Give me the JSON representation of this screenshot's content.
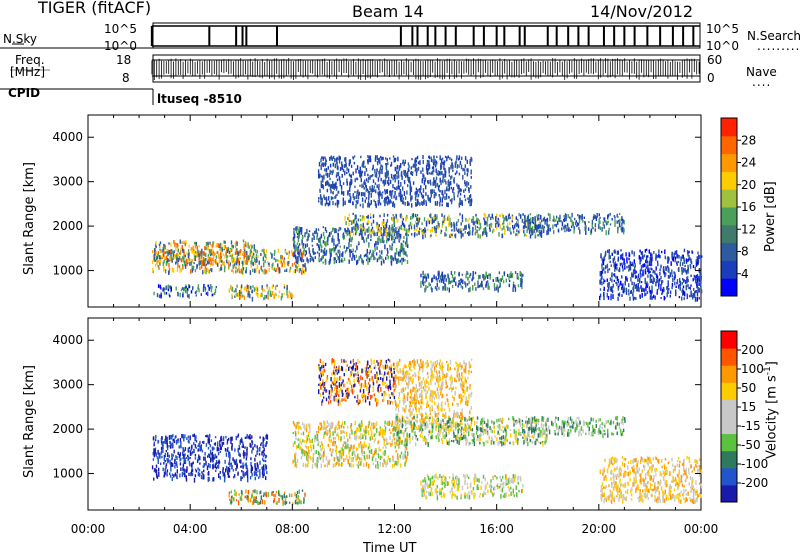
{
  "header": {
    "radar": "TIGER (fitACF)",
    "beam": "Beam 14",
    "date": "14/Nov/2012"
  },
  "status_panels": {
    "nsky_label": "N.Sky",
    "nsky_ticks": [
      "10^5",
      "10^0"
    ],
    "nsearch_label": "N.Search",
    "nsearch_ticks": [
      "10^5",
      "10^0"
    ],
    "freq_label_line1": "Freq.",
    "freq_label_line2": "[MHz]",
    "freq_ticks": [
      "18",
      "8"
    ],
    "nave_label": "Nave",
    "nave_ticks": [
      "60",
      "0"
    ],
    "cpid_label": "CPID",
    "cpid_text": "ltuseq -8510",
    "data_start_hour": 2.5,
    "nsky_spikes_hours": [
      2.5,
      4.75,
      5.8,
      6.05,
      6.2,
      7.4,
      12.25,
      12.7,
      12.9,
      13.3,
      13.6,
      14.0,
      14.4,
      15.1,
      15.5,
      16.0,
      16.3,
      16.9,
      17.1,
      18.0,
      18.35,
      18.8,
      19.2,
      19.6,
      20.2,
      20.6,
      21.0,
      21.4,
      21.9,
      22.4,
      22.9,
      23.3,
      23.7
    ]
  },
  "chart_data": [
    {
      "type": "heatmap",
      "title": "",
      "xlabel": "Time UT",
      "ylabel": "Slant Range [km]",
      "xlim": [
        0,
        24
      ],
      "ylim": [
        180,
        4500
      ],
      "x_tick_labels": [
        "00:00",
        "04:00",
        "08:00",
        "12:00",
        "16:00",
        "20:00",
        "00:00"
      ],
      "x_tick_hours": [
        0,
        4,
        8,
        12,
        16,
        20,
        24
      ],
      "y_ticks": [
        1000,
        2000,
        3000,
        4000
      ],
      "colorbar": {
        "label": "Power [dB]",
        "ticks": [
          "4",
          "8",
          "12",
          "16",
          "20",
          "24",
          "28"
        ],
        "colors": [
          "#0000ff",
          "#1a3dbb",
          "#2e5a9e",
          "#3f7a6c",
          "#4aa05a",
          "#a0c040",
          "#ffcc00",
          "#ff9900",
          "#ff6600",
          "#ff2200"
        ]
      },
      "scatter_regions": [
        {
          "t": [
            2.5,
            6.5
          ],
          "r": [
            1200,
            1700
          ],
          "c": [
            "#ff9900",
            "#ff6600",
            "#ffcc00",
            "#4aa05a",
            "#2e5a9e"
          ]
        },
        {
          "t": [
            2.5,
            8.5
          ],
          "r": [
            1000,
            1500
          ],
          "c": [
            "#ff6600",
            "#ffcc00",
            "#4aa05a",
            "#2e5a9e"
          ]
        },
        {
          "t": [
            5.5,
            8.0
          ],
          "r": [
            400,
            700
          ],
          "c": [
            "#ffcc00",
            "#4aa05a",
            "#2e5a9e",
            "#ff9900"
          ]
        },
        {
          "t": [
            2.5,
            5.0
          ],
          "r": [
            450,
            700
          ],
          "c": [
            "#2e5a9e",
            "#0000ff",
            "#4aa05a"
          ]
        },
        {
          "t": [
            8.0,
            12.5
          ],
          "r": [
            1200,
            2000
          ],
          "c": [
            "#2e5a9e",
            "#1a3dbb",
            "#4aa05a"
          ]
        },
        {
          "t": [
            10.0,
            18.0
          ],
          "r": [
            1800,
            2300
          ],
          "c": [
            "#2e5a9e",
            "#4aa05a",
            "#ffcc00",
            "#1a3dbb"
          ]
        },
        {
          "t": [
            13.0,
            17.0
          ],
          "r": [
            600,
            1000
          ],
          "c": [
            "#2e5a9e",
            "#4aa05a",
            "#1a3dbb"
          ]
        },
        {
          "t": [
            17.0,
            21.0
          ],
          "r": [
            1900,
            2300
          ],
          "c": [
            "#2e5a9e",
            "#1a3dbb",
            "#4aa05a"
          ]
        },
        {
          "t": [
            20.0,
            24.0
          ],
          "r": [
            400,
            1500
          ],
          "c": [
            "#2e5a9e",
            "#1a3dbb",
            "#0000ff"
          ]
        },
        {
          "t": [
            9.0,
            15.0
          ],
          "r": [
            2500,
            3600
          ],
          "c": [
            "#1a3dbb",
            "#2e5a9e"
          ]
        }
      ]
    },
    {
      "type": "heatmap",
      "title": "",
      "xlabel": "Time UT",
      "ylabel": "Slant Range [km]",
      "xlim": [
        0,
        24
      ],
      "ylim": [
        180,
        4500
      ],
      "x_tick_labels": [
        "00:00",
        "04:00",
        "08:00",
        "12:00",
        "16:00",
        "20:00",
        "00:00"
      ],
      "x_tick_hours": [
        0,
        4,
        8,
        12,
        16,
        20,
        24
      ],
      "y_ticks": [
        1000,
        2000,
        3000,
        4000
      ],
      "colorbar": {
        "label": "Velocity [m s^-1]",
        "ticks": [
          "200",
          "100",
          "50",
          "15",
          "-15",
          "-50",
          "-100",
          "-200"
        ],
        "colors": [
          "#1a1aaa",
          "#2255cc",
          "#2e7a5e",
          "#5cc040",
          "#c8c8c8",
          "#c8c8c8",
          "#ffcc00",
          "#ff9900",
          "#ff5500",
          "#ff0000"
        ]
      },
      "scatter_regions": [
        {
          "t": [
            2.5,
            7.0
          ],
          "r": [
            900,
            1900
          ],
          "c": [
            "#1a1aaa",
            "#2255cc"
          ]
        },
        {
          "t": [
            5.5,
            8.5
          ],
          "r": [
            350,
            650
          ],
          "c": [
            "#ff9900",
            "#ff5500",
            "#5cc040",
            "#2e7a5e"
          ]
        },
        {
          "t": [
            8.0,
            12.5
          ],
          "r": [
            1200,
            2200
          ],
          "c": [
            "#ffcc00",
            "#5cc040",
            "#ff9900",
            "#c8c8c8"
          ]
        },
        {
          "t": [
            12.0,
            15.0
          ],
          "r": [
            2000,
            3600
          ],
          "c": [
            "#ffcc00",
            "#ff9900",
            "#c8c8c8"
          ]
        },
        {
          "t": [
            12.0,
            18.0
          ],
          "r": [
            1700,
            2300
          ],
          "c": [
            "#5cc040",
            "#ffcc00",
            "#c8c8c8",
            "#2e7a5e"
          ]
        },
        {
          "t": [
            13.0,
            17.0
          ],
          "r": [
            500,
            1000
          ],
          "c": [
            "#c8c8c8",
            "#ffcc00",
            "#5cc040"
          ]
        },
        {
          "t": [
            17.0,
            21.0
          ],
          "r": [
            1900,
            2300
          ],
          "c": [
            "#5cc040",
            "#c8c8c8",
            "#2e7a5e"
          ]
        },
        {
          "t": [
            20.0,
            24.0
          ],
          "r": [
            400,
            1400
          ],
          "c": [
            "#c8c8c8",
            "#ffcc00",
            "#ff9900"
          ]
        },
        {
          "t": [
            9.0,
            12.0
          ],
          "r": [
            2600,
            3600
          ],
          "c": [
            "#ff5500",
            "#1a1aaa",
            "#ffcc00"
          ]
        }
      ]
    }
  ]
}
